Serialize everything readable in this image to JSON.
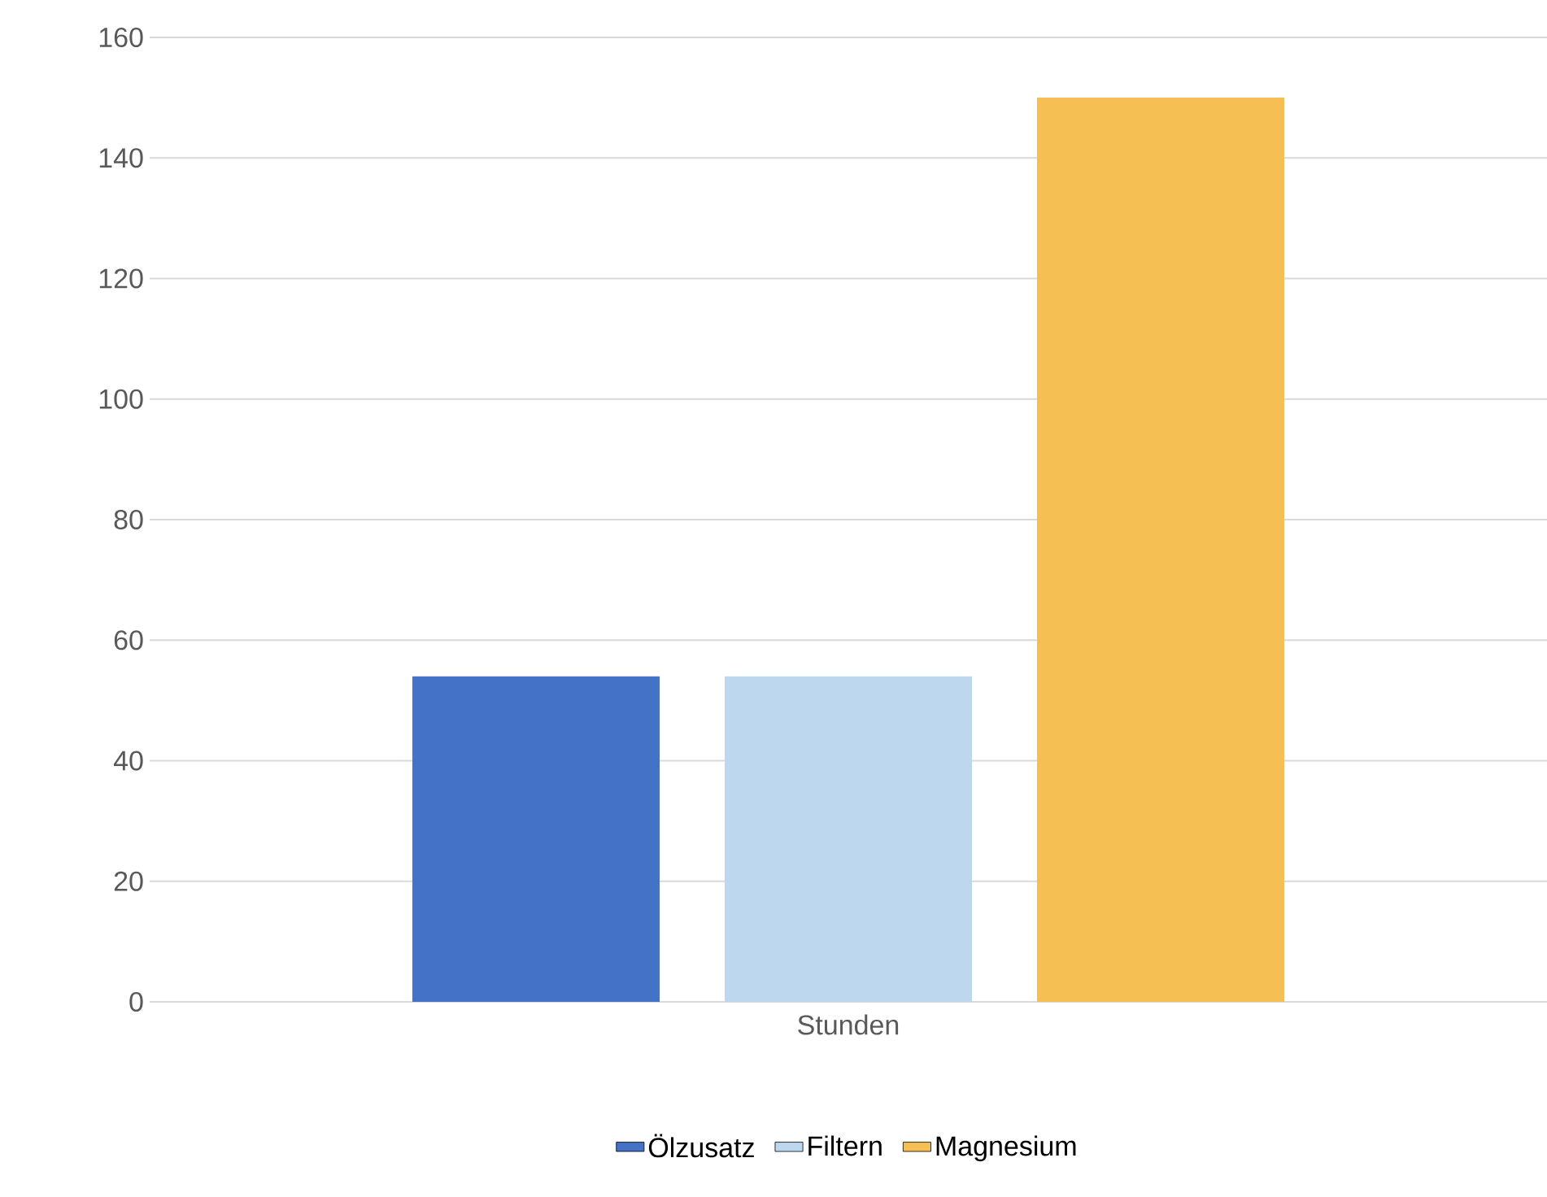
{
  "chart_data": {
    "type": "bar",
    "categories": [
      "Stunden"
    ],
    "series": [
      {
        "name": "Ölzusatz",
        "color": "#4472c4",
        "values": [
          54
        ]
      },
      {
        "name": "Filtern",
        "color": "#bdd7ee",
        "values": [
          54
        ]
      },
      {
        "name": "Magnesium",
        "color": "#f5bf54",
        "values": [
          150
        ]
      }
    ],
    "ylim": [
      0,
      160
    ],
    "yticks": [
      0,
      20,
      40,
      60,
      80,
      100,
      120,
      140,
      160
    ],
    "grid": "y",
    "legend": "bottom"
  }
}
